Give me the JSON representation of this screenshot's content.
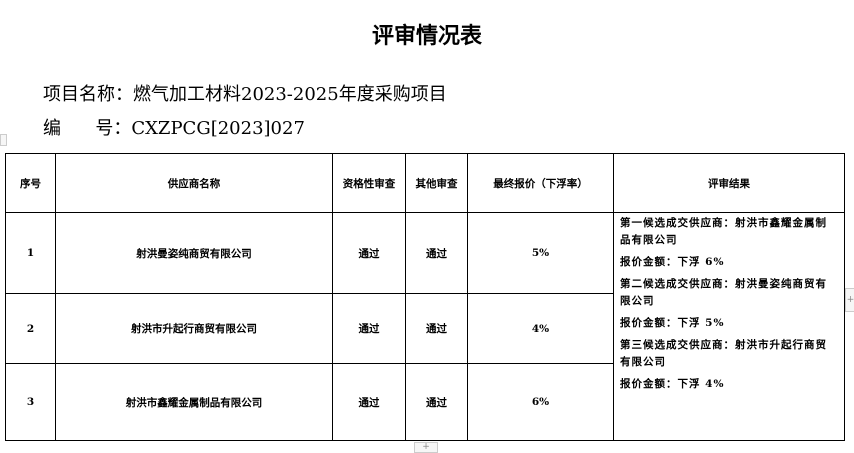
{
  "title": "评审情况表",
  "project": {
    "name_label": "项目名称：",
    "name": "燃气加工材料2023-2025年度采购项目",
    "code_label": "编      号：",
    "code": "CXZPCG[2023]027"
  },
  "table": {
    "headers": [
      "序号",
      "供应商名称",
      "资格性审查",
      "其他审查",
      "最终报价（下浮率）",
      "评审结果"
    ],
    "rows": [
      {
        "no": "1",
        "supplier": "射洪曼姿纯商贸有限公司",
        "qualification": "通过",
        "other": "通过",
        "price": "5%"
      },
      {
        "no": "2",
        "supplier": "射洪市升起行商贸有限公司",
        "qualification": "通过",
        "other": "通过",
        "price": "4%"
      },
      {
        "no": "3",
        "supplier": "射洪市鑫耀金属制品有限公司",
        "qualification": "通过",
        "other": "通过",
        "price": "6%"
      }
    ],
    "result": [
      "第一候选成交供应商：射洪市鑫耀金属制品有限公司",
      "报价金额：下浮 6%",
      "第二候选成交供应商：射洪曼姿纯商贸有限公司",
      "报价金额：下浮 5%",
      "第三候选成交供应商：射洪市升起行商贸有限公司",
      "报价金额：下浮 4%"
    ]
  },
  "widgets": {
    "add_row": "+"
  }
}
